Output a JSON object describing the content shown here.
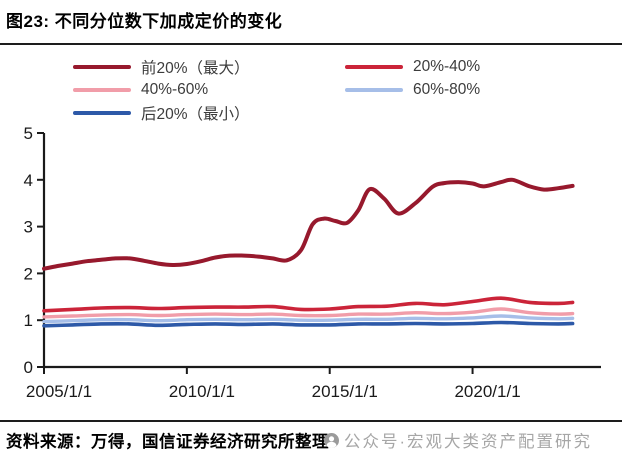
{
  "header": {
    "title": "图23: 不同分位数下加成定价的变化"
  },
  "footer": {
    "source": "资料来源：万得，国信证券经济研究所整理",
    "watermark": "公众号·宏观大类资产配置研究"
  },
  "ui_colors": {
    "rule": "#1d1d1d",
    "axis": "#1a1a1a",
    "watermark_gray": "#969696",
    "background": "#ffffff"
  },
  "chart_data": {
    "type": "line",
    "title": "不同分位数下加成定价的变化",
    "xlabel": "",
    "ylabel": "",
    "xlim": [
      2005,
      2023.5
    ],
    "ylim": [
      0,
      5
    ],
    "grid": false,
    "legend_position": "top",
    "y_ticks": [
      "0",
      "1",
      "2",
      "3",
      "4",
      "5"
    ],
    "x_ticks": [
      "2005/1/1",
      "2010/1/1",
      "2015/1/1",
      "2020/1/1"
    ],
    "x_tick_years": [
      2005,
      2010,
      2015,
      2020
    ],
    "series": [
      {
        "name": "前20%（最大）",
        "color": "#97192d",
        "line_width": 4,
        "x": [
          2005,
          2005.5,
          2006,
          2006.5,
          2007,
          2007.5,
          2008,
          2008.5,
          2009,
          2009.5,
          2010,
          2010.5,
          2011,
          2011.5,
          2012,
          2012.5,
          2013,
          2013.5,
          2014,
          2014.4,
          2014.8,
          2015.2,
          2015.6,
          2016,
          2016.4,
          2016.9,
          2017.4,
          2018,
          2018.6,
          2019,
          2019.5,
          2020,
          2020.4,
          2021,
          2021.4,
          2022,
          2022.5,
          2023,
          2023.5
        ],
        "y": [
          2.1,
          2.16,
          2.21,
          2.26,
          2.29,
          2.32,
          2.32,
          2.27,
          2.21,
          2.18,
          2.2,
          2.26,
          2.34,
          2.38,
          2.38,
          2.36,
          2.32,
          2.28,
          2.5,
          3.05,
          3.17,
          3.12,
          3.08,
          3.35,
          3.8,
          3.6,
          3.28,
          3.5,
          3.85,
          3.93,
          3.95,
          3.92,
          3.86,
          3.95,
          4.0,
          3.86,
          3.79,
          3.82,
          3.87
        ]
      },
      {
        "name": "20%-40%",
        "color": "#cb2439",
        "line_width": 3.6,
        "x": [
          2005,
          2006,
          2007,
          2008,
          2009,
          2010,
          2011,
          2012,
          2013,
          2014,
          2015,
          2016,
          2017,
          2018,
          2019,
          2020,
          2021,
          2022,
          2023,
          2023.5
        ],
        "y": [
          1.2,
          1.23,
          1.26,
          1.27,
          1.25,
          1.27,
          1.28,
          1.28,
          1.29,
          1.23,
          1.24,
          1.29,
          1.3,
          1.36,
          1.33,
          1.4,
          1.47,
          1.38,
          1.36,
          1.38
        ]
      },
      {
        "name": "40%-60%",
        "color": "#f19da9",
        "line_width": 3.4,
        "x": [
          2005,
          2006,
          2007,
          2008,
          2009,
          2010,
          2011,
          2012,
          2013,
          2014,
          2015,
          2016,
          2017,
          2018,
          2019,
          2020,
          2021,
          2022,
          2023,
          2023.5
        ],
        "y": [
          1.07,
          1.09,
          1.11,
          1.12,
          1.1,
          1.12,
          1.13,
          1.12,
          1.13,
          1.1,
          1.1,
          1.13,
          1.13,
          1.16,
          1.14,
          1.17,
          1.24,
          1.16,
          1.13,
          1.14
        ]
      },
      {
        "name": "60%-80%",
        "color": "#a6bee8",
        "line_width": 3.4,
        "x": [
          2005,
          2006,
          2007,
          2008,
          2009,
          2010,
          2011,
          2012,
          2013,
          2014,
          2015,
          2016,
          2017,
          2018,
          2019,
          2020,
          2021,
          2022,
          2023,
          2023.5
        ],
        "y": [
          0.97,
          0.99,
          1.01,
          1.01,
          0.99,
          1.01,
          1.02,
          1.01,
          1.02,
          1.0,
          1.0,
          1.02,
          1.02,
          1.04,
          1.03,
          1.05,
          1.09,
          1.05,
          1.03,
          1.04
        ]
      },
      {
        "name": "后20%（最小）",
        "color": "#2d59a8",
        "line_width": 3.6,
        "x": [
          2005,
          2006,
          2007,
          2008,
          2009,
          2010,
          2011,
          2012,
          2013,
          2014,
          2015,
          2016,
          2017,
          2018,
          2019,
          2020,
          2021,
          2022,
          2023,
          2023.5
        ],
        "y": [
          0.88,
          0.9,
          0.92,
          0.92,
          0.89,
          0.91,
          0.92,
          0.91,
          0.92,
          0.9,
          0.9,
          0.92,
          0.92,
          0.93,
          0.92,
          0.93,
          0.95,
          0.93,
          0.92,
          0.93
        ]
      }
    ]
  }
}
